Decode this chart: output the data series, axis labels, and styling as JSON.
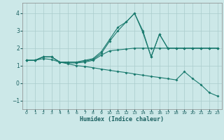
{
  "xlabel": "Humidex (Indice chaleur)",
  "background_color": "#cce8e8",
  "grid_color": "#aacccc",
  "line_color": "#1a7a6e",
  "xlim": [
    -0.5,
    23.5
  ],
  "ylim": [
    -1.5,
    4.6
  ],
  "yticks": [
    -1,
    0,
    1,
    2,
    3,
    4
  ],
  "xticks": [
    0,
    1,
    2,
    3,
    4,
    5,
    6,
    7,
    8,
    9,
    10,
    11,
    12,
    13,
    14,
    15,
    16,
    17,
    18,
    19,
    20,
    21,
    22,
    23
  ],
  "line1_x": [
    0,
    1,
    2,
    3,
    4,
    5,
    6,
    7,
    8,
    9,
    10,
    11,
    12,
    13,
    14,
    15,
    16,
    17,
    18,
    19,
    20,
    21,
    22,
    23
  ],
  "line1_y": [
    1.3,
    1.3,
    1.5,
    1.5,
    1.2,
    1.2,
    1.2,
    1.3,
    1.4,
    1.8,
    2.5,
    3.2,
    3.5,
    4.0,
    3.0,
    1.5,
    2.8,
    2.0,
    2.0,
    2.0,
    2.0,
    2.0,
    2.0,
    2.0
  ],
  "line2_x": [
    0,
    1,
    2,
    3,
    4,
    5,
    6,
    7,
    8,
    9,
    10,
    11,
    12,
    13,
    14,
    15,
    16,
    17,
    18,
    19,
    20,
    21,
    22,
    23
  ],
  "line2_y": [
    1.3,
    1.3,
    1.5,
    1.5,
    1.2,
    1.2,
    1.2,
    1.25,
    1.35,
    1.7,
    2.4,
    3.0,
    3.5,
    4.0,
    2.9,
    1.5,
    2.8,
    2.0,
    2.0,
    2.0,
    2.0,
    2.0,
    2.0,
    2.0
  ],
  "line3_x": [
    0,
    1,
    2,
    3,
    4,
    5,
    6,
    7,
    8,
    9,
    10,
    11,
    12,
    13,
    14,
    15,
    16,
    17,
    18,
    19,
    20,
    21,
    22,
    23
  ],
  "line3_y": [
    1.3,
    1.3,
    1.5,
    1.5,
    1.2,
    1.15,
    1.15,
    1.2,
    1.3,
    1.6,
    1.85,
    1.9,
    1.95,
    2.0,
    2.0,
    2.0,
    2.0,
    2.0,
    2.0,
    2.0,
    2.0,
    2.0,
    2.0,
    2.0
  ],
  "line4_x": [
    0,
    1,
    2,
    3,
    4,
    5,
    6,
    7,
    8,
    9,
    10,
    11,
    12,
    13,
    14,
    15,
    16,
    17,
    18,
    19,
    20,
    21,
    22,
    23
  ],
  "line4_y": [
    1.3,
    1.3,
    1.4,
    1.35,
    1.2,
    1.1,
    1.0,
    0.95,
    0.88,
    0.8,
    0.73,
    0.66,
    0.6,
    0.52,
    0.45,
    0.38,
    0.32,
    0.25,
    0.18,
    0.65,
    0.25,
    -0.1,
    -0.55,
    -0.75
  ]
}
